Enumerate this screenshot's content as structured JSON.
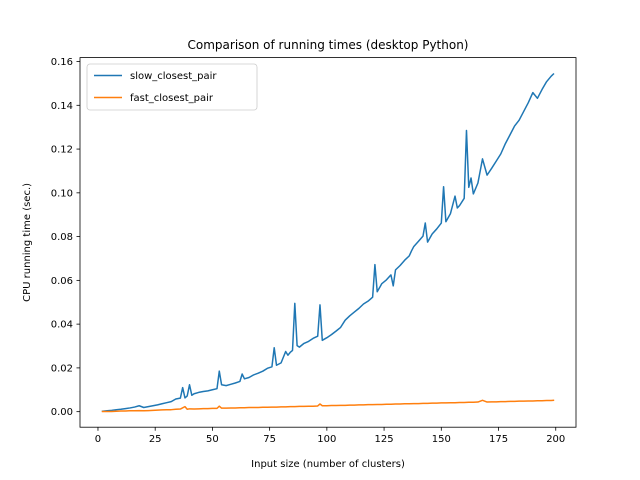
{
  "chart_data": {
    "type": "line",
    "title": "Comparison of running times (desktop Python)",
    "xlabel": "Input size (number of clusters)",
    "ylabel": "CPU running time (sec.)",
    "xlim": [
      -7.85,
      208.85
    ],
    "ylim": [
      -0.0071,
      0.1618
    ],
    "xticks": [
      "0",
      "25",
      "50",
      "75",
      "100",
      "125",
      "150",
      "175",
      "200"
    ],
    "yticks": [
      "0.00",
      "0.02",
      "0.04",
      "0.06",
      "0.08",
      "0.10",
      "0.12",
      "0.14",
      "0.16"
    ],
    "legend_position": "top-left",
    "grid": false,
    "series": [
      {
        "name": "slow_closest_pair",
        "color": "#1f77b4",
        "x": [
          2,
          4,
          6,
          8,
          10,
          12,
          14,
          16,
          18,
          20,
          22,
          24,
          26,
          28,
          30,
          32,
          34,
          36,
          37,
          38,
          39,
          40,
          41,
          42,
          44,
          46,
          48,
          50,
          52,
          53,
          54,
          56,
          58,
          60,
          62,
          63,
          64,
          66,
          68,
          70,
          72,
          74,
          76,
          77,
          78,
          80,
          82,
          83,
          84,
          85,
          86,
          87,
          88,
          90,
          92,
          94,
          96,
          97,
          98,
          100,
          102,
          104,
          106,
          108,
          110,
          112,
          114,
          116,
          118,
          120,
          121,
          122,
          123,
          124,
          126,
          128,
          129,
          130,
          132,
          134,
          136,
          137,
          138,
          140,
          142,
          143,
          144,
          146,
          148,
          150,
          151,
          152,
          154,
          156,
          157,
          158,
          160,
          161,
          162,
          163,
          164,
          166,
          168,
          170,
          172,
          174,
          176,
          178,
          180,
          182,
          184,
          186,
          188,
          190,
          192,
          194,
          196,
          198,
          199
        ],
        "y": [
          0.0002,
          0.0004,
          0.0006,
          0.0009,
          0.0011,
          0.0014,
          0.0017,
          0.0021,
          0.0027,
          0.0019,
          0.0023,
          0.0027,
          0.0031,
          0.0036,
          0.0041,
          0.0046,
          0.0058,
          0.0062,
          0.011,
          0.0063,
          0.0072,
          0.0123,
          0.0075,
          0.0082,
          0.0088,
          0.0092,
          0.0095,
          0.01,
          0.0105,
          0.0185,
          0.0123,
          0.0119,
          0.0125,
          0.0131,
          0.0138,
          0.0172,
          0.015,
          0.0156,
          0.0168,
          0.0176,
          0.0185,
          0.0198,
          0.0205,
          0.0292,
          0.0212,
          0.0223,
          0.0275,
          0.0258,
          0.0271,
          0.028,
          0.0495,
          0.0302,
          0.0295,
          0.0312,
          0.0321,
          0.0335,
          0.0345,
          0.0488,
          0.0326,
          0.0338,
          0.0352,
          0.0368,
          0.0385,
          0.0418,
          0.0438,
          0.0455,
          0.0472,
          0.0492,
          0.0505,
          0.0523,
          0.0672,
          0.0548,
          0.0566,
          0.0585,
          0.0602,
          0.0625,
          0.0575,
          0.0648,
          0.0668,
          0.0692,
          0.0712,
          0.0735,
          0.0755,
          0.0778,
          0.0802,
          0.0862,
          0.0775,
          0.0812,
          0.0835,
          0.0862,
          0.1028,
          0.0868,
          0.0905,
          0.0985,
          0.0931,
          0.0942,
          0.0975,
          0.1285,
          0.1025,
          0.1068,
          0.0995,
          0.1045,
          0.1155,
          0.1081,
          0.1112,
          0.1145,
          0.1178,
          0.1225,
          0.1265,
          0.1305,
          0.1332,
          0.1372,
          0.1412,
          0.1458,
          0.1432,
          0.1472,
          0.1508,
          0.1533,
          0.1543
        ]
      },
      {
        "name": "fast_closest_pair",
        "color": "#ff7f0e",
        "x": [
          2,
          4,
          6,
          8,
          10,
          12,
          14,
          16,
          18,
          20,
          22,
          24,
          26,
          28,
          30,
          32,
          34,
          36,
          38,
          39,
          40,
          42,
          44,
          46,
          48,
          50,
          52,
          53,
          54,
          56,
          58,
          60,
          62,
          64,
          66,
          68,
          70,
          72,
          74,
          76,
          78,
          80,
          82,
          84,
          86,
          88,
          90,
          92,
          94,
          96,
          97,
          98,
          100,
          102,
          104,
          106,
          108,
          110,
          112,
          114,
          116,
          118,
          120,
          122,
          124,
          126,
          128,
          130,
          132,
          134,
          136,
          138,
          140,
          142,
          144,
          146,
          148,
          150,
          152,
          154,
          156,
          158,
          160,
          162,
          164,
          166,
          168,
          170,
          172,
          174,
          176,
          178,
          180,
          182,
          184,
          186,
          188,
          190,
          192,
          194,
          196,
          198,
          199
        ],
        "y": [
          0.0001,
          0.0001,
          0.0001,
          0.0002,
          0.0003,
          0.0003,
          0.0004,
          0.0004,
          0.0005,
          0.0004,
          0.0005,
          0.0006,
          0.0007,
          0.0008,
          0.0009,
          0.0009,
          0.0011,
          0.0012,
          0.0023,
          0.0011,
          0.0013,
          0.0012,
          0.0013,
          0.0014,
          0.0014,
          0.0015,
          0.0015,
          0.0025,
          0.0016,
          0.0016,
          0.0017,
          0.0017,
          0.0018,
          0.0018,
          0.0019,
          0.0019,
          0.0019,
          0.002,
          0.002,
          0.0021,
          0.0021,
          0.0022,
          0.0022,
          0.0023,
          0.0023,
          0.0024,
          0.0024,
          0.0025,
          0.0025,
          0.0026,
          0.0035,
          0.0027,
          0.0027,
          0.0028,
          0.0028,
          0.0029,
          0.0029,
          0.003,
          0.003,
          0.0031,
          0.0031,
          0.0032,
          0.0032,
          0.0033,
          0.0033,
          0.0034,
          0.0034,
          0.0035,
          0.0035,
          0.0036,
          0.0036,
          0.0037,
          0.0037,
          0.0038,
          0.0038,
          0.0039,
          0.0039,
          0.004,
          0.004,
          0.0041,
          0.0041,
          0.0042,
          0.0042,
          0.0043,
          0.0043,
          0.0044,
          0.0052,
          0.0044,
          0.0045,
          0.0045,
          0.0046,
          0.0046,
          0.0047,
          0.0047,
          0.0048,
          0.0048,
          0.0049,
          0.0049,
          0.005,
          0.005,
          0.0051,
          0.0051,
          0.0052
        ]
      }
    ]
  }
}
